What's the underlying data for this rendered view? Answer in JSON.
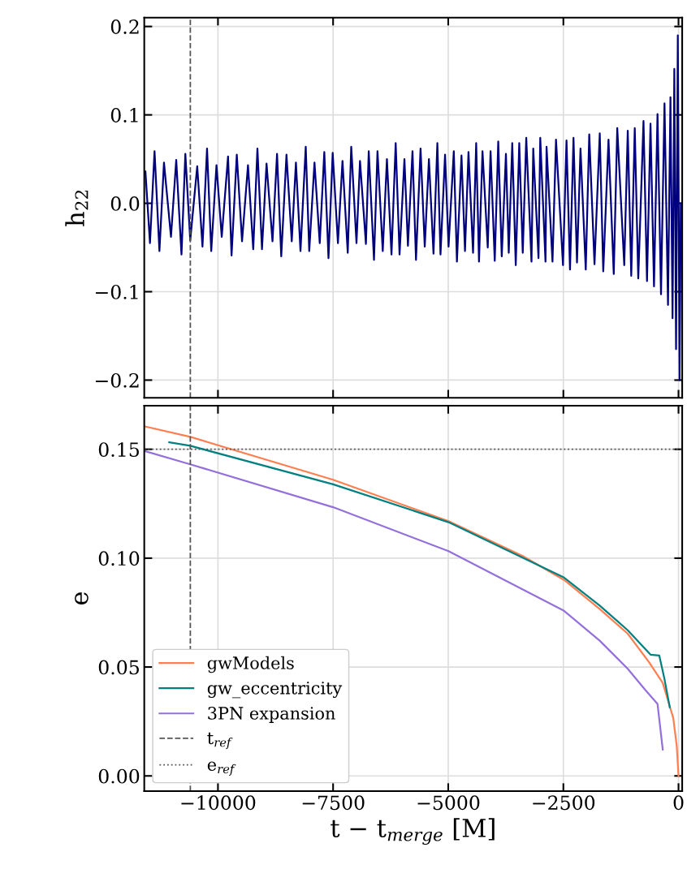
{
  "chart_data": [
    {
      "type": "line",
      "ylabel": "h$_{22}$",
      "xlim": [
        -11600,
        80
      ],
      "ylim": [
        -0.22,
        0.21
      ],
      "xticks": [
        {
          "value": -10000,
          "label": null
        },
        {
          "value": -7500,
          "label": null
        },
        {
          "value": -5000,
          "label": null
        },
        {
          "value": -2500,
          "label": null
        },
        {
          "value": 0,
          "label": null
        }
      ],
      "yticks": [
        {
          "value": -0.2,
          "label": "−0.2"
        },
        {
          "value": -0.1,
          "label": "−0.1"
        },
        {
          "value": 0.0,
          "label": "0.0"
        },
        {
          "value": 0.1,
          "label": "0.1"
        },
        {
          "value": 0.2,
          "label": "0.2"
        }
      ],
      "tick_labels": "y",
      "grid": true,
      "line_style": "solid",
      "ref_lines": [
        {
          "axis": "x",
          "value": -10600,
          "color": "#555555",
          "line_style": "dashed"
        }
      ],
      "series": [
        {
          "color": "#00007f",
          "x": [
            -11575,
            -11476,
            -11377,
            -11271,
            -11172,
            -11020,
            -10906,
            -10792,
            -10708,
            -10602,
            -10450,
            -10336,
            -10237,
            -10146,
            -10032,
            -9918,
            -9781,
            -9705,
            -9591,
            -9477,
            -9348,
            -9234,
            -9143,
            -9044,
            -8945,
            -8816,
            -8717,
            -8626,
            -8512,
            -8398,
            -8307,
            -8208,
            -8094,
            -8018,
            -7904,
            -7790,
            -7691,
            -7600,
            -7509,
            -7395,
            -7296,
            -7182,
            -7106,
            -6992,
            -6916,
            -6787,
            -6726,
            -6612,
            -6536,
            -6422,
            -6331,
            -6232,
            -6141,
            -6057,
            -5951,
            -5875,
            -5776,
            -5700,
            -5601,
            -5510,
            -5419,
            -5320,
            -5236,
            -5168,
            -5069,
            -4993,
            -4879,
            -4811,
            -4712,
            -4636,
            -4560,
            -4461,
            -4393,
            -4332,
            -4256,
            -4142,
            -4081,
            -3990,
            -3914,
            -3838,
            -3747,
            -3686,
            -3610,
            -3534,
            -3458,
            -3382,
            -3306,
            -3192,
            -3154,
            -3040,
            -3002,
            -2888,
            -2865,
            -2736,
            -2660,
            -2508,
            -2432,
            -2356,
            -2280,
            -2204,
            -2128,
            -2014,
            -1938,
            -1824,
            -1710,
            -1634,
            -1520,
            -1406,
            -1330,
            -1178,
            -1102,
            -1026,
            -950,
            -874,
            -760,
            -684,
            -608,
            -532,
            -456,
            -380,
            -304,
            -228,
            -175,
            -129,
            -91,
            -53,
            -15,
            23,
            50
          ],
          "values": [
            0.036,
            -0.045,
            0.059,
            -0.054,
            0.046,
            -0.038,
            0.049,
            -0.058,
            0.056,
            -0.042,
            0.042,
            -0.049,
            0.062,
            -0.054,
            0.043,
            -0.038,
            0.053,
            -0.059,
            0.055,
            -0.043,
            0.043,
            -0.052,
            0.062,
            -0.052,
            0.045,
            -0.043,
            0.056,
            -0.06,
            0.055,
            -0.043,
            0.046,
            -0.054,
            0.064,
            -0.054,
            0.046,
            -0.045,
            0.058,
            -0.062,
            0.057,
            -0.045,
            0.048,
            -0.056,
            0.064,
            -0.045,
            0.048,
            -0.046,
            0.059,
            -0.064,
            0.059,
            -0.054,
            0.05,
            -0.058,
            0.068,
            -0.058,
            0.05,
            -0.048,
            0.059,
            -0.064,
            0.062,
            -0.049,
            0.05,
            -0.057,
            0.068,
            -0.058,
            0.055,
            -0.049,
            0.059,
            -0.066,
            0.054,
            -0.054,
            0.058,
            -0.056,
            0.068,
            -0.066,
            0.059,
            -0.05,
            0.059,
            -0.065,
            0.07,
            -0.06,
            0.056,
            -0.056,
            0.068,
            -0.07,
            0.068,
            -0.056,
            0.074,
            -0.066,
            0.062,
            -0.062,
            0.074,
            -0.066,
            0.064,
            -0.066,
            0.072,
            -0.07,
            0.071,
            -0.075,
            0.074,
            -0.067,
            0.062,
            -0.075,
            0.078,
            -0.069,
            0.079,
            -0.077,
            0.072,
            -0.08,
            0.085,
            -0.07,
            0.082,
            -0.082,
            0.085,
            -0.085,
            0.093,
            -0.088,
            0.09,
            -0.094,
            0.101,
            -0.103,
            0.113,
            -0.115,
            0.12,
            -0.13,
            0.152,
            -0.165,
            0.19,
            -0.2,
            0.0
          ]
        }
      ]
    },
    {
      "type": "line",
      "xlabel": "t − t$_{merge}$ [M]",
      "ylabel": "e",
      "xlim": [
        -11600,
        80
      ],
      "ylim": [
        -0.007,
        0.17
      ],
      "xticks": [
        {
          "value": -10000,
          "label": "−10000"
        },
        {
          "value": -7500,
          "label": "−7500"
        },
        {
          "value": -5000,
          "label": "−5000"
        },
        {
          "value": -2500,
          "label": "−2500"
        },
        0
      ],
      "yticks": [
        {
          "value": 0.0,
          "label": "0.00"
        },
        {
          "value": 0.05,
          "label": "0.05"
        },
        {
          "value": 0.1,
          "label": "0.10"
        },
        {
          "value": 0.15,
          "label": "0.15"
        }
      ],
      "grid": true,
      "legend": "bottom left",
      "line_style": "solid",
      "ref_lines": [
        {
          "axis": "x",
          "value": -10600,
          "label": "t$_{ref}$",
          "color": "#555555",
          "line_style": "dashed"
        },
        {
          "axis": "y",
          "value": 0.15,
          "label": "e$_{ref}$",
          "color": "#555555",
          "line_style": "dotted"
        }
      ],
      "series": [
        {
          "name": "gwModels",
          "color": "#ff7f50",
          "x": [
            -11590,
            -10602,
            -7500,
            -4993,
            -3382,
            -2485,
            -1710,
            -1102,
            -646,
            -342,
            -114,
            -38,
            0
          ],
          "values": [
            0.1605,
            0.1557,
            0.136,
            0.117,
            0.101,
            0.09,
            0.0766,
            0.0653,
            0.0524,
            0.0427,
            0.0266,
            0.0137,
            0.0
          ]
        },
        {
          "name": "gw_eccentricity",
          "color": "#008080",
          "x": [
            -11058,
            -10602,
            -7500,
            -4993,
            -2485,
            -1710,
            -1102,
            -608,
            -418,
            -304,
            -190
          ],
          "values": [
            0.1532,
            0.1516,
            0.1339,
            0.1165,
            0.0911,
            0.0782,
            0.0669,
            0.0557,
            0.0553,
            0.0444,
            0.0315
          ]
        },
        {
          "name": "3PN expansion",
          "color": "#9370db",
          "x": [
            -11590,
            -10602,
            -7500,
            -4993,
            -2485,
            -1710,
            -1102,
            -722,
            -456,
            -342
          ],
          "values": [
            0.1492,
            0.1431,
            0.1234,
            0.1032,
            0.0758,
            0.0621,
            0.0492,
            0.0395,
            0.0331,
            0.0121
          ]
        }
      ]
    }
  ]
}
